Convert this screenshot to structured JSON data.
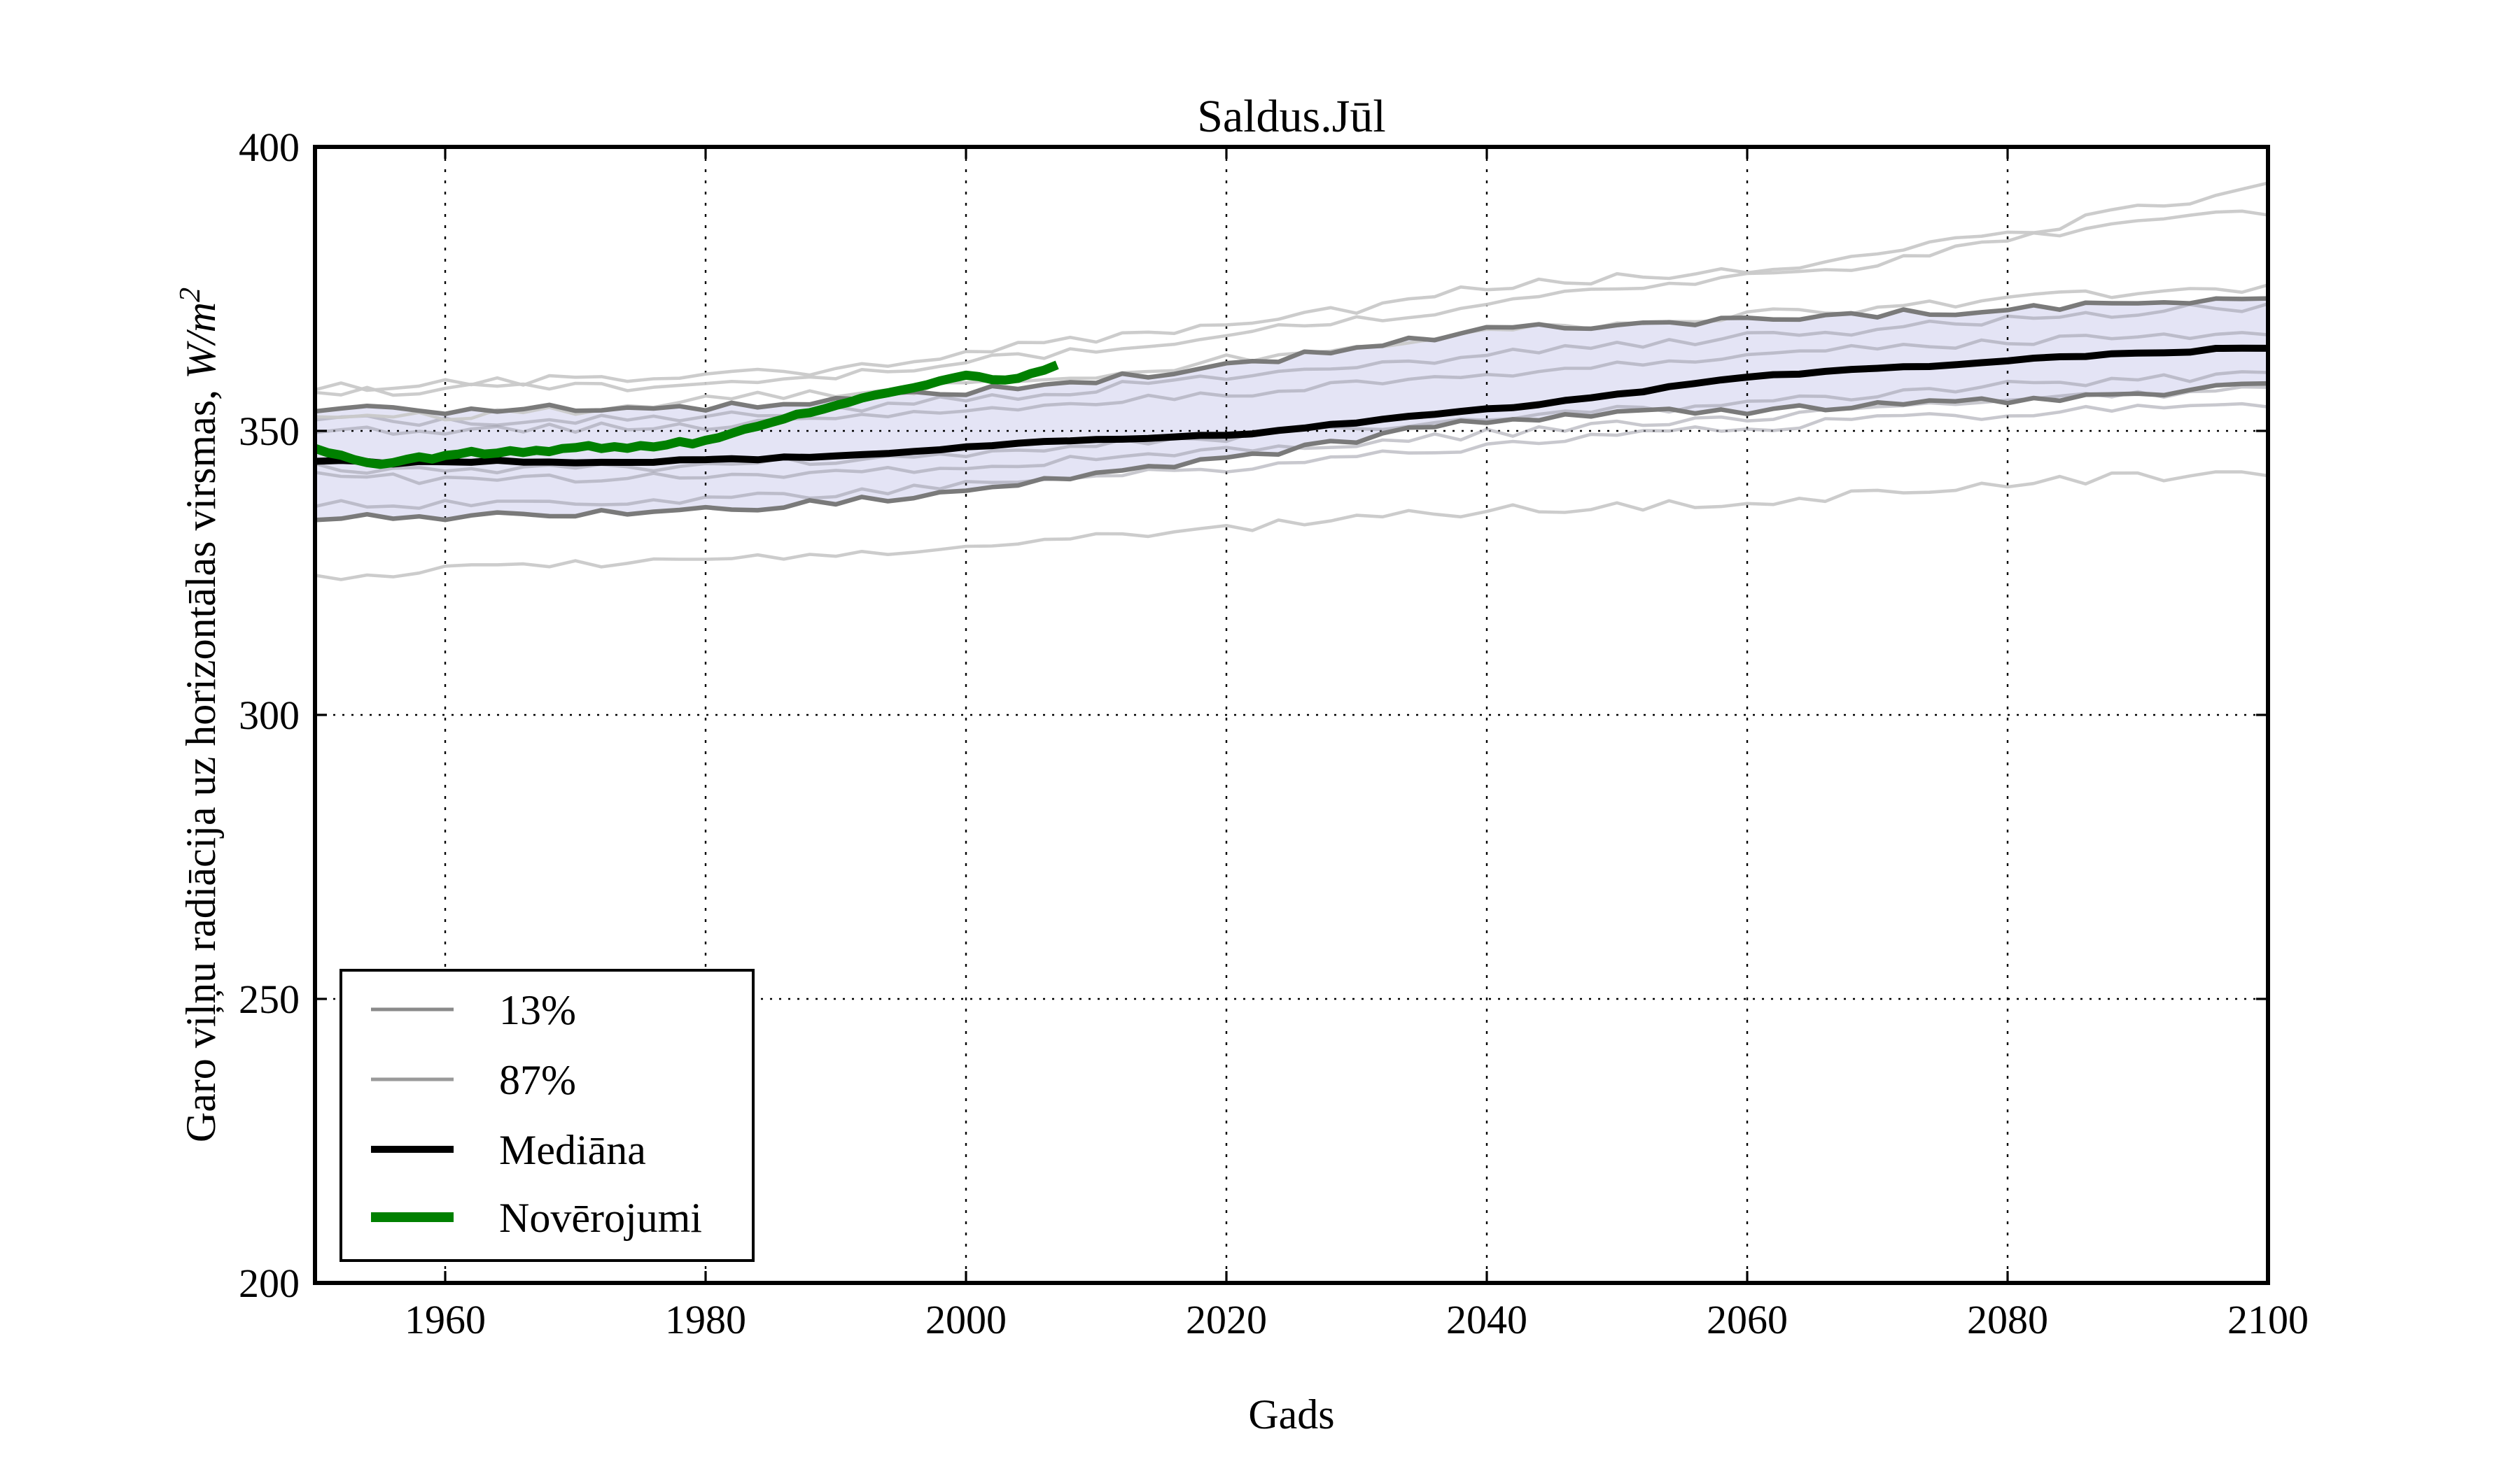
{
  "figure": {
    "title": "Saldus.Jūl",
    "xlabel": "Gads",
    "ylabel_prefix": "Garo viļņu radiācija uz horizontālas virsmas, ",
    "ylabel_math": "W/m",
    "ylabel_exp": "2",
    "background": "#ffffff"
  },
  "axes": {
    "xlim": [
      1950,
      2100
    ],
    "ylim": [
      200,
      400
    ],
    "xticks": [
      1960,
      1980,
      2000,
      2020,
      2040,
      2060,
      2080,
      2100
    ],
    "yticks": [
      200,
      250,
      300,
      350,
      400
    ],
    "xgridlines": [
      1960,
      1980,
      2000,
      2020,
      2040,
      2060,
      2080
    ],
    "ygridlines": [
      250,
      300,
      350
    ],
    "grid_style": "dotted",
    "spine_color": "#000000"
  },
  "legend": {
    "position": "lower-left",
    "border_color": "#000000",
    "fill": "#ffffff",
    "entries": [
      {
        "label": "13%",
        "color": "#8a8a8a",
        "width": 5
      },
      {
        "label": "87%",
        "color": "#9a9a9a",
        "width": 5
      },
      {
        "label": "Mediāna",
        "color": "#000000",
        "width": 10
      },
      {
        "label": "Novērojumi",
        "color": "#008000",
        "width": 14
      }
    ]
  },
  "colors": {
    "band_fill": "#e4e4f5",
    "percentile_line": "#7a7a7a",
    "ensemble_light": "#c9c9c9",
    "ensemble_inner": "#9b9ba6",
    "median": "#000000",
    "observations": "#008000",
    "grid": "#000000"
  },
  "chart_data": {
    "type": "line",
    "title": "Saldus.Jūl",
    "xlabel": "Gads",
    "ylabel": "Garo viļņu radiācija uz horizontālas virsmas, W/m^2",
    "xlim": [
      1950,
      2100
    ],
    "ylim": [
      200,
      400
    ],
    "grid": true,
    "legend_position": "lower-left",
    "band": {
      "name": "13-87% uncertainty band",
      "fill": "#e4e4f5",
      "x_start": 1950,
      "x_step": 10,
      "p13": [
        334.5,
        335,
        335.5,
        336,
        337.5,
        339.5,
        342,
        345,
        348.5,
        352,
        353,
        353.5,
        354.5,
        355.5,
        356.5,
        358
      ],
      "p87": [
        354,
        353.5,
        354,
        354.2,
        355.5,
        357,
        359,
        361.5,
        364.5,
        368,
        368.5,
        369.5,
        370.5,
        371.5,
        372.5,
        373.5
      ]
    },
    "ensemble_members": {
      "x_start": 1950,
      "x_step": 10,
      "outer": [
        [
          357.5,
          358.5,
          359,
          359.5,
          361,
          364,
          366.5,
          369,
          371.5,
          375.5,
          377,
          378.5,
          381,
          384.5,
          389,
          393
        ],
        [
          356.5,
          357.5,
          357.5,
          358.5,
          360,
          362,
          364.5,
          367,
          369.5,
          372.5,
          375,
          377.5,
          379.5,
          383.5,
          386.5,
          388.5
        ],
        [
          352.5,
          352.5,
          353.5,
          355.5,
          356.5,
          358,
          360,
          362.5,
          365,
          367.5,
          369,
          370.5,
          371.5,
          373,
          374.5,
          375.5
        ],
        [
          324.5,
          325.5,
          326.5,
          327.5,
          328.5,
          330,
          331.5,
          333,
          334.5,
          336,
          336.5,
          337.5,
          339,
          340.5,
          342,
          342.5
        ]
      ],
      "inner": [
        [
          352,
          351.5,
          352,
          352.5,
          354,
          355.5,
          357.5,
          359.5,
          361.5,
          363.5,
          365,
          366.5,
          368,
          369.5,
          371,
          372
        ],
        [
          350.5,
          350,
          350.5,
          351,
          352,
          353.5,
          355,
          356.5,
          358,
          359.5,
          361.5,
          363,
          364.5,
          365.5,
          366.5,
          367.5
        ],
        [
          343.5,
          343,
          343.5,
          344,
          345,
          346,
          347.5,
          349,
          350.5,
          352,
          353.5,
          355,
          356.5,
          358,
          359,
          360
        ],
        [
          342,
          341.5,
          341.5,
          342,
          342.5,
          343.5,
          345,
          346.5,
          348,
          349.5,
          351,
          352.5,
          354,
          355.5,
          356.5,
          357.5
        ],
        [
          337.5,
          337,
          337.5,
          338,
          339,
          340.5,
          342,
          343.5,
          345.5,
          347.5,
          349,
          350.5,
          352,
          353,
          354,
          355
        ]
      ]
    },
    "series": [
      {
        "name": "Mediāna",
        "color": "#000000",
        "x_start": 1950,
        "x_step": 5,
        "values": [
          344.8,
          344.3,
          344.5,
          344.6,
          344.5,
          344.6,
          344.7,
          345.2,
          345.7,
          346.4,
          347.2,
          347.8,
          348.3,
          348.8,
          349.3,
          350.3,
          351.5,
          352.6,
          353.7,
          355,
          356.4,
          357.9,
          359.3,
          360.2,
          361,
          361.7,
          362.3,
          363,
          363.7,
          364.2,
          364.6
        ]
      },
      {
        "name": "Novērojumi",
        "color": "#008000",
        "x_start": 1950,
        "x_step": 1,
        "values": [
          347,
          346.3,
          345.6,
          345,
          344.3,
          344,
          344.4,
          345,
          345.4,
          345.2,
          345.6,
          346,
          346.3,
          345.9,
          346.2,
          346.5,
          346.2,
          346.6,
          346.4,
          346.8,
          347,
          347.3,
          346.9,
          347.2,
          347,
          347.4,
          347.2,
          347.6,
          348,
          347.7,
          348.3,
          348.9,
          349.6,
          350.3,
          350.9,
          351.6,
          352.2,
          352.8,
          353.3,
          353.9,
          354.5,
          355.1,
          355.7,
          356.2,
          356.7,
          357.1,
          357.5,
          358.1,
          358.7,
          359.2,
          359.7,
          359.5,
          359.1,
          358.9,
          359.4,
          360.1,
          360.8,
          361.6
        ]
      }
    ]
  }
}
